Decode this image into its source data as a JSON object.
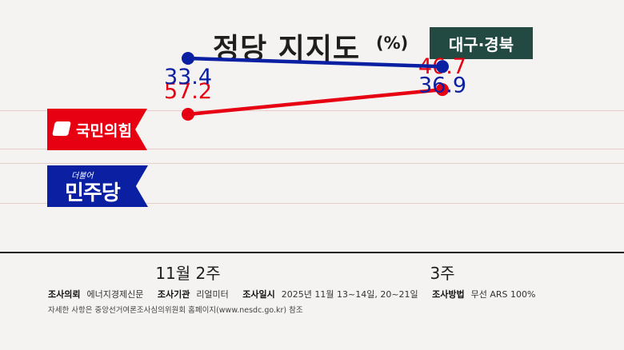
{
  "header": {
    "title": "정당 지지도",
    "unit": "(%)",
    "region": "대구·경북"
  },
  "chart_data": {
    "type": "line",
    "categories": [
      "11월 2주",
      "3주"
    ],
    "series": [
      {
        "name": "국민의힘",
        "values": [
          57.2,
          46.7
        ],
        "color": "#e60012"
      },
      {
        "name": "민주당",
        "values": [
          33.4,
          36.9
        ],
        "color": "#0b1fa3"
      }
    ],
    "data_labels": [
      [
        "57.2",
        "46.7"
      ],
      [
        "33.4",
        "36.9"
      ]
    ],
    "grid": true
  },
  "legend": {
    "ppp": {
      "name": "국민의힘",
      "logo": "ppp-logo-icon"
    },
    "dem": {
      "name": "민주당",
      "small": "더불어"
    }
  },
  "footer": {
    "client_label": "조사의뢰",
    "client": "에너지경제신문",
    "agency_label": "조사기관",
    "agency": "리얼미터",
    "date_label": "조사일시",
    "date": "2025년 11월 13~14일, 20~21일",
    "method_label": "조사방법",
    "method": "무선 ARS 100%",
    "note": "자세한 사항은 중앙선거여론조사심의위원회 홈페이지(www.nesdc.go.kr) 참조"
  }
}
